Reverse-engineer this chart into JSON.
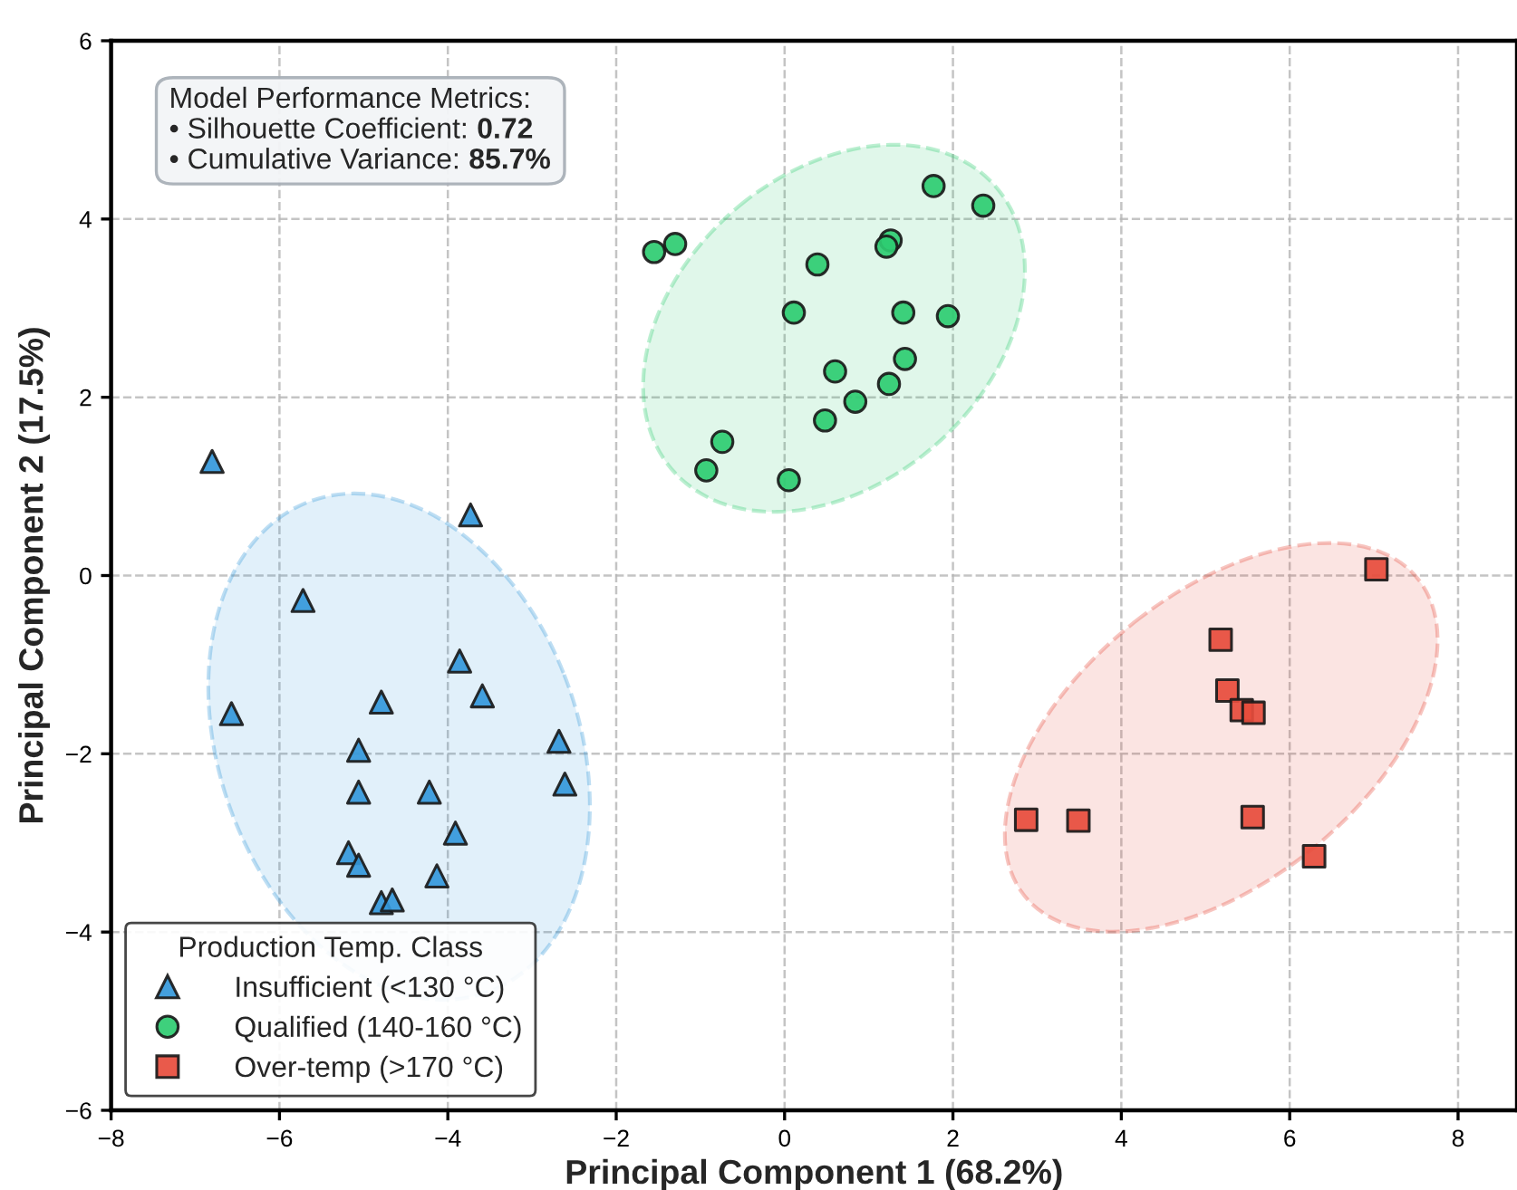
{
  "chart_data": {
    "type": "scatter",
    "xlabel": "Principal Component 1 (68.2%)",
    "ylabel": "Principal Component 2 (17.5%)",
    "legend_title": "Production Temp. Class",
    "annotations": [
      "Model Performance Metrics:",
      "• Silhouette Coefficient: 0.72",
      "• Cumulative Variance: 85.7%"
    ],
    "series": [
      {
        "name": "Insufficient (<130 °C)",
        "color": "#3498db",
        "marker": "triangle",
        "x": [
          -6.8,
          -3.73,
          -5.72,
          -3.86,
          -3.59,
          -4.79,
          -6.57,
          -5.06,
          -2.68,
          -5.06,
          -4.22,
          -2.61,
          -3.91,
          -5.18,
          -5.06,
          -4.13,
          -4.79,
          -4.66
        ],
        "values": [
          1.28,
          0.68,
          -0.28,
          -0.96,
          -1.35,
          -1.42,
          -1.55,
          -1.96,
          -1.86,
          -2.43,
          -2.43,
          -2.34,
          -2.89,
          -3.11,
          -3.25,
          -3.37,
          -3.67,
          -3.64
        ]
      },
      {
        "name": "Qualified (140-160 °C)",
        "color": "#2ecc71",
        "marker": "circle",
        "x": [
          1.77,
          2.36,
          -1.55,
          -1.3,
          1.26,
          1.21,
          0.39,
          0.11,
          1.41,
          1.94,
          1.43,
          0.6,
          1.24,
          0.84,
          0.48,
          -0.74,
          -0.93,
          0.05
        ],
        "values": [
          4.37,
          4.15,
          3.63,
          3.72,
          3.76,
          3.69,
          3.49,
          2.95,
          2.95,
          2.91,
          2.43,
          2.29,
          2.15,
          1.95,
          1.74,
          1.5,
          1.18,
          1.07
        ]
      },
      {
        "name": "Over-temp (>170 °C)",
        "color": "#e74c3c",
        "marker": "square",
        "x": [
          7.03,
          5.18,
          5.26,
          5.43,
          5.57,
          2.87,
          3.49,
          5.56,
          6.29
        ],
        "values": [
          0.07,
          -0.72,
          -1.29,
          -1.51,
          -1.54,
          -2.74,
          -2.75,
          -2.71,
          -3.15
        ]
      }
    ],
    "xlim": [
      -8,
      8.7
    ],
    "ylim": [
      -6,
      6
    ],
    "xticks": [
      -8,
      -6,
      -4,
      -2,
      0,
      2,
      4,
      6,
      8
    ],
    "yticks": [
      -6,
      -4,
      -2,
      0,
      2,
      4,
      6
    ],
    "grid": true,
    "legend": "bottom left"
  }
}
